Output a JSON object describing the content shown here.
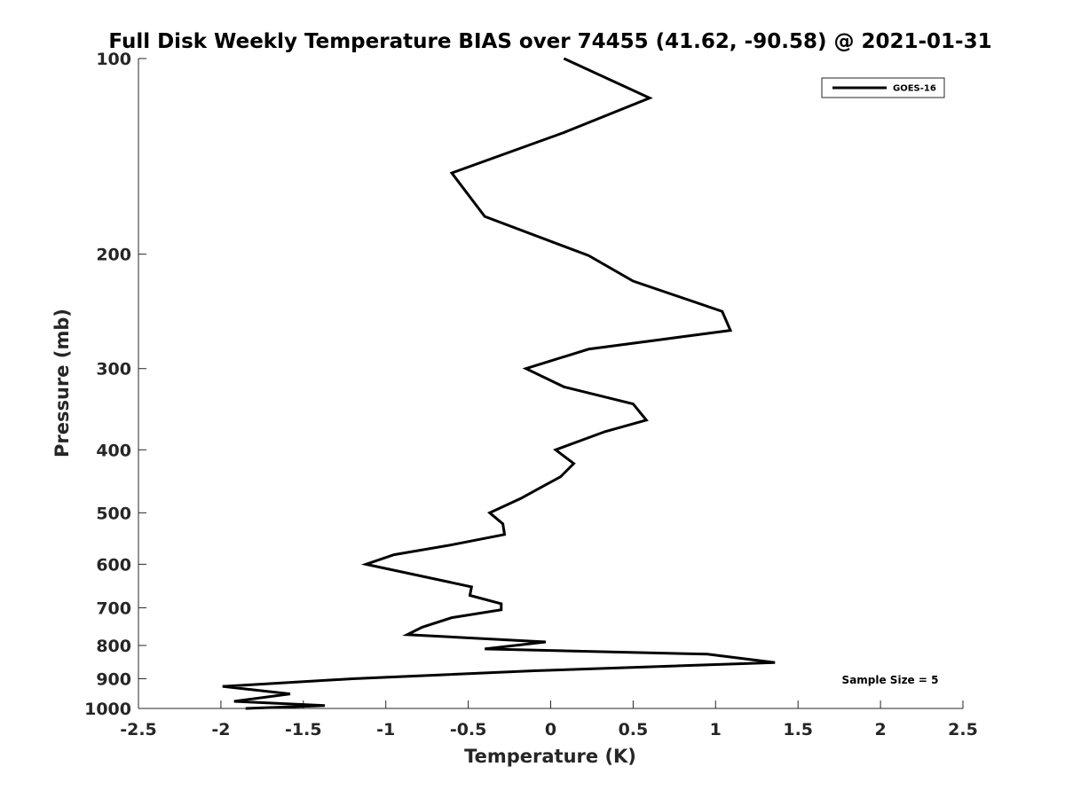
{
  "chart_data": {
    "type": "line",
    "title": "Full Disk Weekly Temperature BIAS over 74455 (41.62, -90.58) @ 2021-01-31",
    "xlabel": "Temperature (K)",
    "ylabel": "Pressure (mb)",
    "xlim": [
      -2.5,
      2.5
    ],
    "ylim": [
      100,
      1000
    ],
    "yscale": "log",
    "y_reversed": true,
    "xticks": [
      -2.5,
      -2,
      -1.5,
      -1,
      -0.5,
      0,
      0.5,
      1,
      1.5,
      2,
      2.5
    ],
    "xtick_labels": [
      "-2.5",
      "-2",
      "-1.5",
      "-1",
      "-0.5",
      "0",
      "0.5",
      "1",
      "1.5",
      "2",
      "2.5"
    ],
    "yticks": [
      100,
      200,
      300,
      400,
      500,
      600,
      700,
      800,
      900,
      1000
    ],
    "ytick_labels": [
      "100",
      "200",
      "300",
      "400",
      "500",
      "600",
      "700",
      "800",
      "900",
      "1000"
    ],
    "grid": false,
    "legend_position": "top-right",
    "line_color": "#000000",
    "series": [
      {
        "name": "GOES-16",
        "points": [
          {
            "x": 0.08,
            "y": 100
          },
          {
            "x": 0.6,
            "y": 115
          },
          {
            "x": 0.08,
            "y": 130
          },
          {
            "x": -0.6,
            "y": 150
          },
          {
            "x": -0.4,
            "y": 175
          },
          {
            "x": 0.23,
            "y": 201
          },
          {
            "x": 0.5,
            "y": 220
          },
          {
            "x": 1.04,
            "y": 245
          },
          {
            "x": 1.09,
            "y": 262
          },
          {
            "x": 0.23,
            "y": 280
          },
          {
            "x": -0.15,
            "y": 300
          },
          {
            "x": 0.08,
            "y": 320
          },
          {
            "x": 0.5,
            "y": 340
          },
          {
            "x": 0.58,
            "y": 360
          },
          {
            "x": 0.33,
            "y": 375
          },
          {
            "x": 0.03,
            "y": 400
          },
          {
            "x": 0.14,
            "y": 420
          },
          {
            "x": 0.06,
            "y": 440
          },
          {
            "x": -0.08,
            "y": 460
          },
          {
            "x": -0.18,
            "y": 475
          },
          {
            "x": -0.37,
            "y": 500
          },
          {
            "x": -0.29,
            "y": 520
          },
          {
            "x": -0.28,
            "y": 540
          },
          {
            "x": -0.6,
            "y": 560
          },
          {
            "x": -0.95,
            "y": 580
          },
          {
            "x": -1.12,
            "y": 600
          },
          {
            "x": -0.48,
            "y": 650
          },
          {
            "x": -0.49,
            "y": 670
          },
          {
            "x": -0.3,
            "y": 690
          },
          {
            "x": -0.3,
            "y": 705
          },
          {
            "x": -0.6,
            "y": 725
          },
          {
            "x": -0.78,
            "y": 750
          },
          {
            "x": -0.87,
            "y": 770
          },
          {
            "x": -0.03,
            "y": 790
          },
          {
            "x": -0.4,
            "y": 810
          },
          {
            "x": 0.95,
            "y": 825
          },
          {
            "x": 1.36,
            "y": 850
          },
          {
            "x": -0.1,
            "y": 875
          },
          {
            "x": -1.2,
            "y": 900
          },
          {
            "x": -1.99,
            "y": 925
          },
          {
            "x": -1.58,
            "y": 950
          },
          {
            "x": -1.92,
            "y": 975
          },
          {
            "x": -1.37,
            "y": 990
          },
          {
            "x": -1.85,
            "y": 1000
          }
        ]
      }
    ],
    "legend": [
      {
        "label": "GOES-16",
        "color": "#000000"
      }
    ],
    "annotation": "Sample Size = 5"
  }
}
